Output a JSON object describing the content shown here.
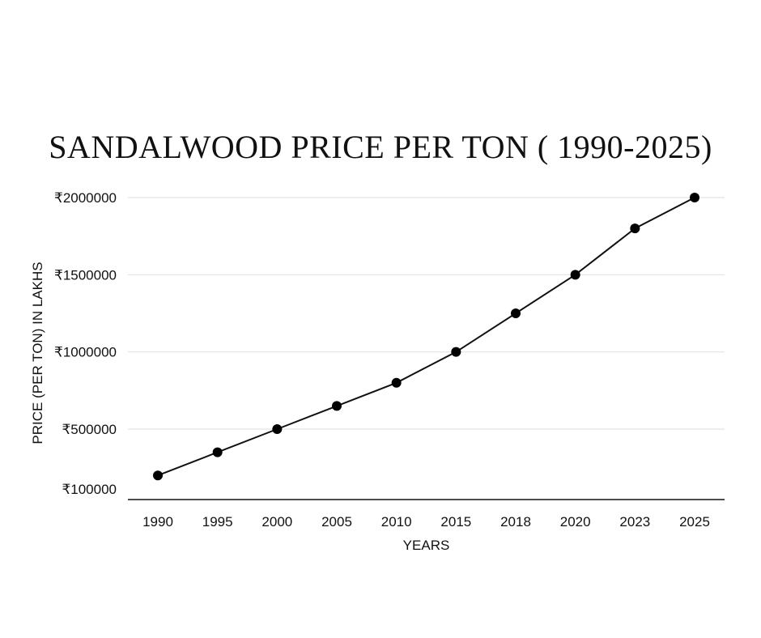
{
  "chart_data": {
    "type": "line",
    "title": "SANDALWOOD PRICE PER TON ( 1990-2025)",
    "xlabel": "YEARS",
    "ylabel": "PRICE (PER TON) IN LAKHS",
    "categories": [
      "1990",
      "1995",
      "2000",
      "2005",
      "2010",
      "2015",
      "2018",
      "2020",
      "2023",
      "2025"
    ],
    "values": [
      200000,
      350000,
      500000,
      650000,
      800000,
      1000000,
      1250000,
      1500000,
      1800000,
      2000000
    ],
    "y_ticks": [
      {
        "value": 2000000,
        "label": "₹2000000"
      },
      {
        "value": 1500000,
        "label": "₹1500000"
      },
      {
        "value": 1000000,
        "label": "₹1000000"
      },
      {
        "value": 500000,
        "label": "₹500000"
      },
      {
        "value": 100000,
        "label": "₹100000"
      }
    ],
    "ylim": [
      50000,
      2000000
    ],
    "grid": true,
    "colors": {
      "line": "#111111",
      "point": "#000000",
      "grid": "#e3e3e3",
      "axis": "#111111"
    }
  }
}
